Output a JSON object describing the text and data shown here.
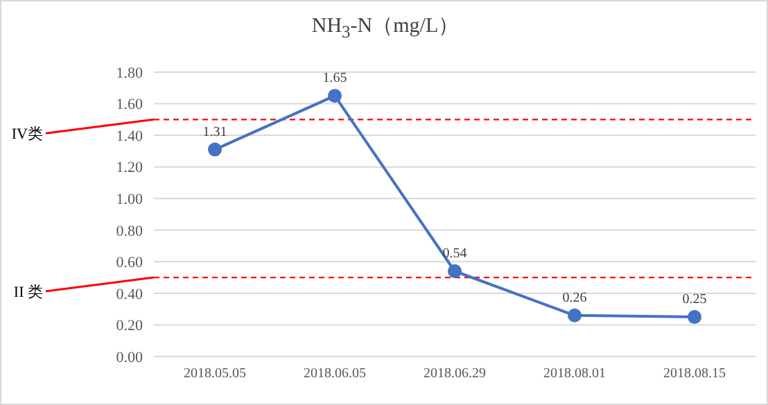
{
  "chart_data": {
    "type": "line",
    "title": "NH$_{3}$-N（mg/L）",
    "categories": [
      "2018.05.05",
      "2018.06.05",
      "2018.06.29",
      "2018.08.01",
      "2018.08.15"
    ],
    "series": [
      {
        "color": "#4472c4",
        "values": [
          1.31,
          1.65,
          0.54,
          0.26,
          0.25
        ]
      }
    ],
    "ylim": [
      0,
      1.8
    ],
    "yticks": [
      {
        "value": 0,
        "label": "0.00"
      },
      {
        "value": 0.2,
        "label": "0.20"
      },
      {
        "value": 0.4,
        "label": "0.40"
      },
      {
        "value": 0.6,
        "label": "0.60"
      },
      {
        "value": 0.8,
        "label": "0.80"
      },
      {
        "value": 1,
        "label": "1.00"
      },
      {
        "value": 1.2,
        "label": "1.20"
      },
      {
        "value": 1.4,
        "label": "1.40"
      },
      {
        "value": 1.6,
        "label": "1.60"
      },
      {
        "value": 1.8,
        "label": "1.80"
      }
    ],
    "ref_lines": [
      {
        "axis": "y",
        "value": 1.5,
        "label": "IV类",
        "color": "#ff0000",
        "line_style": "dashed"
      },
      {
        "axis": "y",
        "value": 0.5,
        "label": "II 类",
        "color": "#ff0000",
        "line_style": "dashed"
      }
    ],
    "grid": "y",
    "marker": "circle",
    "line_style": "solid",
    "data_labels": true,
    "legend": false
  }
}
